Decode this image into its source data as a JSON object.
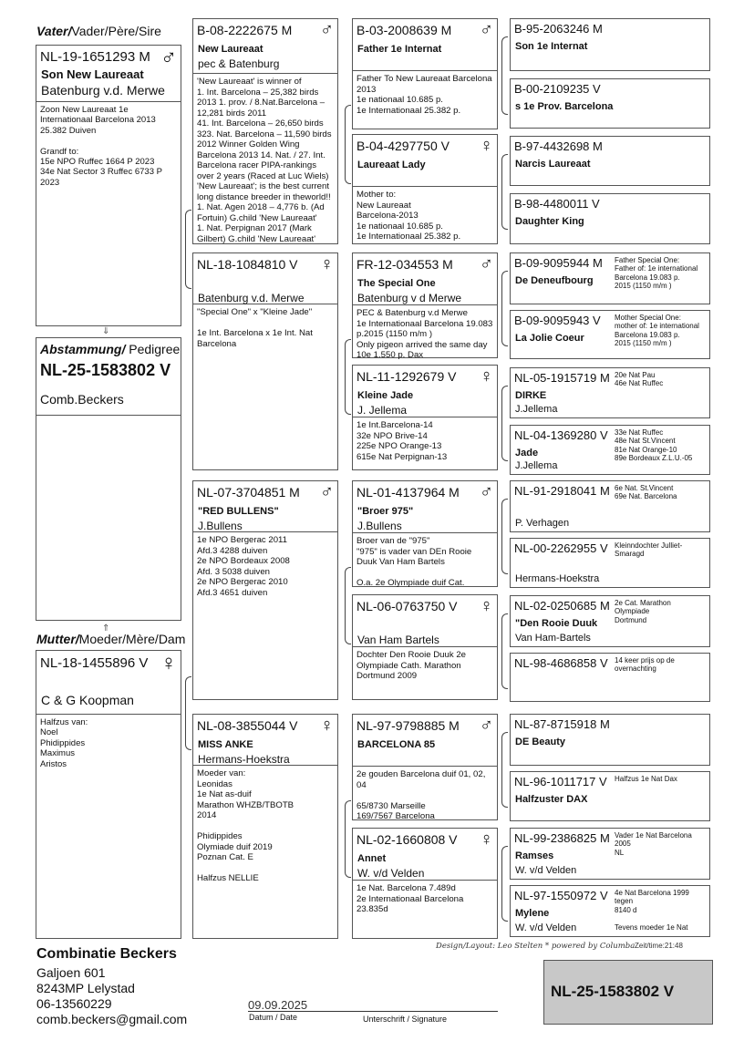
{
  "labels": {
    "sire_bold": "Vater/",
    "sire_rest": "Vader/Père/Sire",
    "dam_bold": "Mutter/",
    "dam_rest": "Moeder/Mère/Dam",
    "pedigree_bold": "Abstammung/",
    "pedigree_rest": " Pedigree"
  },
  "pedigree": {
    "ring": "NL-25-1583802 V",
    "owner": "Comb.Beckers"
  },
  "sire": {
    "ring": "NL-19-1651293 M",
    "sex_icon": "male-icon",
    "name": "Son New Laureaat",
    "breeder": "Batenburg v.d. Merwe",
    "notes": "Zoon New Laureaat 1e\nInternationaal Barcelona 2013\n25.382 Duiven\n\nGrandf to:\n15e NPO Ruffec  1664 P 2023\n34e Nat  Sector 3  Ruffec 6733 P\n2023"
  },
  "dam": {
    "ring": "NL-18-1455896 V",
    "sex_icon": "female-icon",
    "name": "",
    "breeder": "C & G Koopman",
    "notes": "Halfzus van:\nNoel\nPhidippides\nMaximus\nAristos"
  },
  "gen2": [
    {
      "ring": "B-08-2222675 M",
      "sex_icon": "male-icon",
      "name": "New Laureaat",
      "breeder": "pec & Batenburg",
      "notes": "'New Laureaat' is winner of\n1. Int. Barcelona – 25,382 birds\n2013  1. prov. / 8.Nat.Barcelona –\n12,281 birds 2011\n41. Int. Barcelona – 26,650 birds\n323. Nat. Barcelona – 11,590 birds\n2012 Winner Golden Wing\nBarcelona 2013 14. Nat. / 27. Int.\nBarcelona racer PIPA-rankings\nover 2 years  (Raced at Luc Wiels)\n'New Laureaat'; is the best current\nlong distance breeder in theworld!!\n1. Nat. Agen 2018 – 4,776 b. (Ad\nFortuin) G.child 'New Laureaat'\n1. Nat. Perpignan 2017 (Mark\nGilbert) G.child 'New Laureaat'"
    },
    {
      "ring": "NL-18-1084810 V",
      "sex_icon": "female-icon",
      "name": "",
      "breeder": "Batenburg v.d. Merwe",
      "notes": "\"Special One\" x \"Kleine Jade\"\n\n1e Int. Barcelona x 1e Int. Nat\nBarcelona"
    },
    {
      "ring": "NL-07-3704851 M",
      "sex_icon": "male-icon",
      "name": "\"RED BULLENS\"",
      "breeder": "J.Bullens",
      "notes": "1e NPO Bergerac 2011\nAfd.3 4288 duiven\n2e NPO Bordeaux 2008\nAfd. 3 5038 duiven\n2e NPO Bergerac 2010\nAfd.3 4651 duiven"
    },
    {
      "ring": "NL-08-3855044 V",
      "sex_icon": "female-icon",
      "name": "MISS ANKE",
      "breeder": "Hermans-Hoekstra",
      "notes": "Moeder van:\nLeonidas\n1e Nat as-duif\nMarathon WHZB/TBOTB\n2014\n\nPhidippides\nOlymiade duif 2019\nPoznan Cat. E\n\nHalfzus NELLIE"
    }
  ],
  "gen3": [
    {
      "ring": "B-03-2008639 M",
      "sex_icon": "male-icon",
      "name": "Father 1e Internat",
      "breeder": "",
      "notes": "Father To New Laureaat Barcelona\n2013\n1e nationaal 10.685 p.\n1e Internationaal 25.382 p."
    },
    {
      "ring": "B-04-4297750 V",
      "sex_icon": "female-icon",
      "name": "Laureaat Lady",
      "breeder": "",
      "notes": "Mother to:\nNew Laureaat\nBarcelona-2013\n1e nationaal 10.685 p.\n1e Internationaal 25.382 p."
    },
    {
      "ring": "FR-12-034553 M",
      "sex_icon": "male-icon",
      "name": "The Special One",
      "breeder": "Batenburg v d Merwe",
      "notes": "PEC & Batenburg v.d Merwe\n1e Internationaal Barcelona 19.083\np.2015 (1150 m/m )\nOnly pigeon arrived the same day\n10e  1.550 p. Dax"
    },
    {
      "ring": "NL-11-1292679 V",
      "sex_icon": "female-icon",
      "name": "Kleine Jade",
      "breeder": "J. Jellema",
      "notes": "1e Int.Barcelona-14\n32e NPO Brive-14\n225e NPO Orange-13\n615e Nat Perpignan-13"
    },
    {
      "ring": "NL-01-4137964 M",
      "sex_icon": "male-icon",
      "name": "\"Broer 975\"",
      "breeder": "J.Bullens",
      "notes": "Broer van de \"975\"\n\"975\" is vader van DEn Rooie\nDuuk Van Ham Bartels\n\nO.a. 2e Olympiade duif Cat."
    },
    {
      "ring": "NL-06-0763750 V",
      "sex_icon": "female-icon",
      "name": "",
      "breeder": "Van Ham Bartels",
      "notes": "Dochter Den Rooie Duuk 2e\nOlympiade Cath. Marathon\nDortmund 2009"
    },
    {
      "ring": "NL-97-9798885 M",
      "sex_icon": "male-icon",
      "name": "BARCELONA 85",
      "breeder": "",
      "notes": "2e gouden Barcelona duif 01, 02,\n04\n\n65/8730 Marseille\n169/7567 Barcelona"
    },
    {
      "ring": "NL-02-1660808 V",
      "sex_icon": "female-icon",
      "name": "Annet",
      "breeder": "W. v/d Velden",
      "notes": "1e Nat. Barcelona 7.489d\n2e Internationaal Barcelona\n23.835d"
    }
  ],
  "gen4": [
    {
      "ring": "B-95-2063246 M",
      "name": "Son 1e Internat",
      "breeder": "",
      "notes": ""
    },
    {
      "ring": "B-00-2109235 V",
      "name": "s 1e Prov. Barcelona",
      "breeder": "",
      "notes": ""
    },
    {
      "ring": "B-97-4432698 M",
      "name": "Narcis Laureaat",
      "breeder": "",
      "notes": ""
    },
    {
      "ring": "B-98-4480011 V",
      "name": "Daughter King",
      "breeder": "",
      "notes": ""
    },
    {
      "ring": "B-09-9095944 M",
      "name": "De Deneufbourg",
      "breeder": "",
      "notes": "Father Special One:\nFather of: 1e international\nBarcelona 19.083 p.\n2015 (1150  m/m )"
    },
    {
      "ring": "B-09-9095943 V",
      "name": "La Jolie Coeur",
      "breeder": "",
      "notes": "Mother Special One:\nmother of: 1e international\nBarcelona 19.083 p.\n2015 (1150  m/m )"
    },
    {
      "ring": "NL-05-1915719 M",
      "name": "DIRKE",
      "breeder": "J.Jellema",
      "notes": "20e Nat Pau\n46e Nat Ruffec"
    },
    {
      "ring": "NL-04-1369280 V",
      "name": "Jade",
      "breeder": "J.Jellema",
      "notes": "33e Nat Ruffec\n48e Nat St.Vincent\n81e Nat Orange-10\n89e Bordeaux Z.L.U.-05"
    },
    {
      "ring": "NL-91-2918041 M",
      "name": "",
      "breeder": "P. Verhagen",
      "notes": "6e Nat. St.Vincent\n69e Nat. Barcelona"
    },
    {
      "ring": "NL-00-2262955 V",
      "name": "",
      "breeder": "Hermans-Hoekstra",
      "notes": "Kleinndochter Julliet-\nSmaragd"
    },
    {
      "ring": "NL-02-0250685 M",
      "name": "\"Den Rooie Duuk",
      "breeder": "Van Ham-Bartels",
      "notes": "2e Cat. Marathon Olympiade\nDortmund"
    },
    {
      "ring": "NL-98-4686858 V",
      "name": "",
      "breeder": "",
      "notes": "14 keer prijs op de\novernachting"
    },
    {
      "ring": "NL-87-8715918 M",
      "name": "DE Beauty",
      "breeder": "",
      "notes": ""
    },
    {
      "ring": "NL-96-1011717 V",
      "name": "Halfzuster DAX",
      "breeder": "",
      "notes": "Halfzus 1e Nat Dax"
    },
    {
      "ring": "NL-99-2386825 M",
      "name": "Ramses",
      "breeder": "W. v/d Velden",
      "notes": "Vader 1e Nat Barcelona 2005\nNL"
    },
    {
      "ring": "NL-97-1550972 V",
      "name": "Mylene",
      "breeder": "W. v/d Velden",
      "notes": "4e Nat Barcelona 1999 tegen\n8140 d\n\nTevens moeder 1e Nat"
    }
  ],
  "footer": {
    "owner_name": "Combinatie Beckers",
    "address_1": "Galjoen 601",
    "address_2": "8243MP Lelystad",
    "phone": "06-13560229",
    "email": "comb.beckers@gmail.com",
    "date_value": "09.09.2025",
    "date_label": "Datum / Date",
    "signature_label": "Unterschrift / Signature",
    "design_credit": "Design/Layout: Leo Stelten * powered by Columba",
    "time": "Zeit/time:21:48",
    "ring_badge": "NL-25-1583802 V"
  }
}
